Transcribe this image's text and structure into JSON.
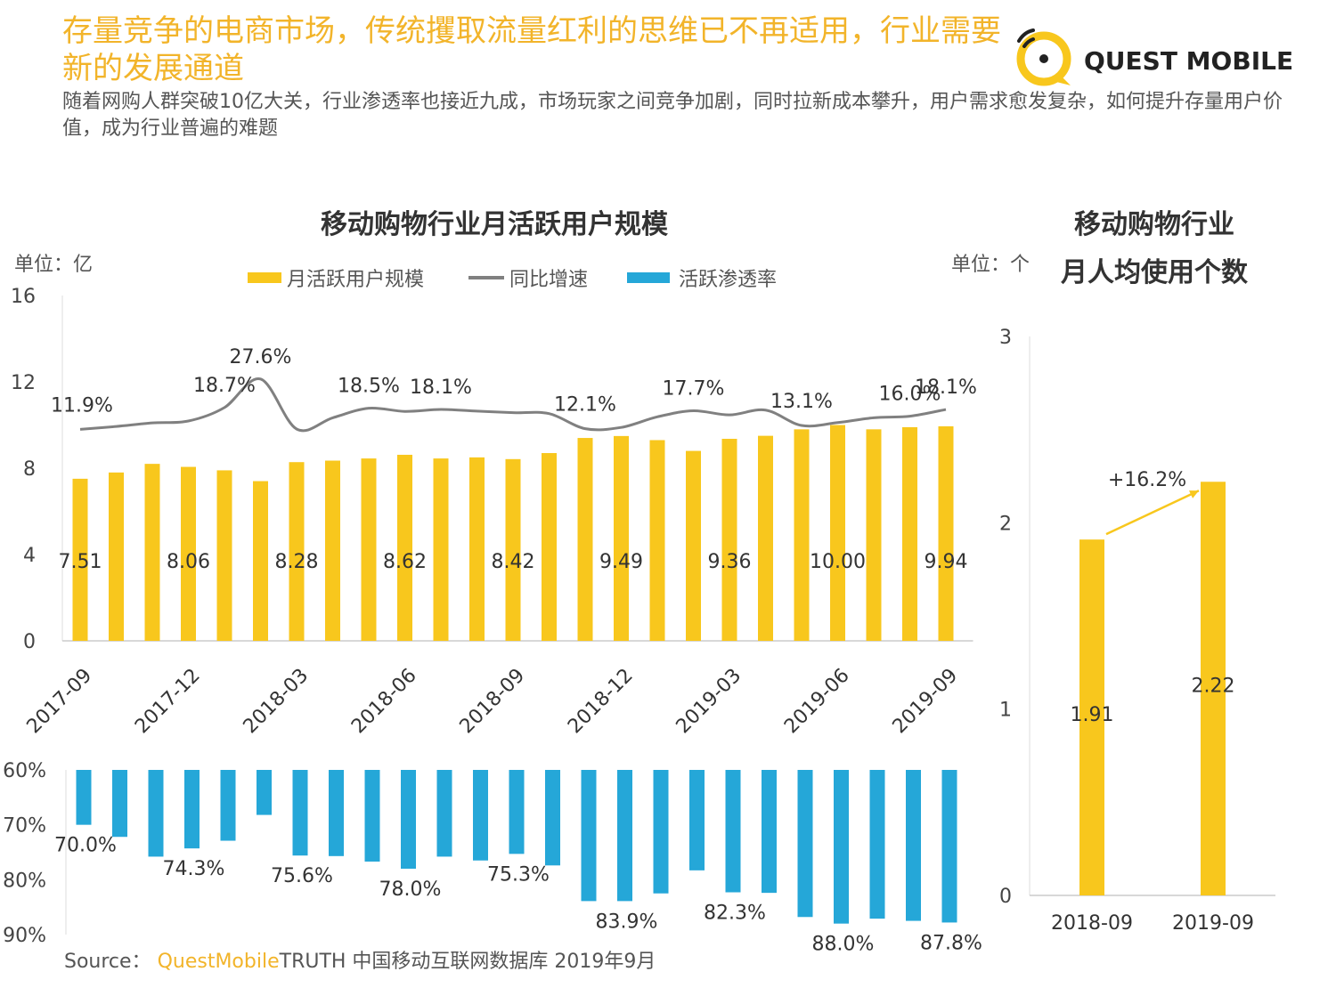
{
  "header": {
    "title": "存量竞争的电商市场，传统攫取流量红利的思维已不再适用，行业需要新的发展通道",
    "subtitle": "随着网购人群突破10亿大关，行业渗透率也接近九成，市场玩家之间竞争加剧，同时拉新成本攀升，用户需求愈发复杂，如何提升存量用户价值，成为行业普遍的难题",
    "logo_text": "QUEST MOBILE"
  },
  "source": {
    "label": "Source：",
    "brand": "QuestMobile",
    "text": "TRUTH 中国移动互联网数据库 2019年9月"
  },
  "colors": {
    "yellow": "#f8c71d",
    "gray": "#808080",
    "blue": "#25a7d8",
    "title_orange": "#f2b42a"
  },
  "chart_data": [
    {
      "type": "bar",
      "title": "移动购物行业月活跃用户规模",
      "unit_label": "单位：亿",
      "legend": [
        "月活跃用户规模",
        "同比增速",
        "活跃渗透率"
      ],
      "legend_position": "top",
      "x_tick_labels": [
        "2017-09",
        "2017-12",
        "2018-03",
        "2018-06",
        "2018-09",
        "2018-12",
        "2019-03",
        "2019-06",
        "2019-09"
      ],
      "y_ticks": [
        "0",
        "4",
        "8",
        "12",
        "16"
      ],
      "ylim": [
        0,
        16
      ],
      "series": [
        {
          "name": "月活跃用户规模",
          "type": "bar",
          "values": [
            7.51,
            7.8,
            8.2,
            8.06,
            7.9,
            7.4,
            8.28,
            8.35,
            8.45,
            8.62,
            8.45,
            8.5,
            8.42,
            8.7,
            9.4,
            9.49,
            9.3,
            8.8,
            9.36,
            9.5,
            9.8,
            10.0,
            9.8,
            9.9,
            9.94
          ],
          "labels": [
            "7.51",
            "",
            "",
            "8.06",
            "",
            "",
            "8.28",
            "",
            "",
            "8.62",
            "",
            "",
            "8.42",
            "",
            "",
            "9.49",
            "",
            "",
            "9.36",
            "",
            "",
            "10.00",
            "",
            "",
            "9.94"
          ]
        },
        {
          "name": "同比增速",
          "type": "line",
          "values": [
            11.9,
            12.8,
            13.9,
            14.5,
            18.7,
            27.6,
            12.0,
            15.5,
            18.5,
            17.5,
            18.1,
            17.6,
            17.1,
            16.8,
            12.1,
            12.5,
            15.8,
            17.7,
            16.4,
            17.9,
            13.1,
            14.0,
            15.5,
            16.0,
            18.1
          ],
          "labels": [
            "11.9%",
            "",
            "",
            "",
            "18.7%",
            "27.6%",
            "",
            "",
            "18.5%",
            "",
            "18.1%",
            "",
            "",
            "",
            "12.1%",
            "",
            "",
            "17.7%",
            "",
            "",
            "13.1%",
            "",
            "",
            "16.0%",
            "18.1%"
          ]
        },
        {
          "name": "活跃渗透率",
          "type": "bar",
          "values": [
            70.0,
            72.2,
            75.8,
            74.3,
            72.9,
            68.2,
            75.6,
            75.7,
            76.7,
            78.0,
            75.8,
            76.5,
            75.3,
            77.4,
            83.9,
            83.9,
            82.5,
            78.3,
            82.3,
            82.4,
            86.8,
            88.0,
            87.1,
            87.5,
            87.8
          ],
          "labels": [
            "70.0%",
            "",
            "",
            "74.3%",
            "",
            "",
            "75.6%",
            "",
            "",
            "78.0%",
            "",
            "",
            "75.3%",
            "",
            "",
            "83.9%",
            "",
            "",
            "82.3%",
            "",
            "",
            "88.0%",
            "",
            "",
            "87.8%"
          ]
        }
      ],
      "penetration_axis": {
        "ticks": [
          "60%",
          "70%",
          "80%",
          "90%"
        ],
        "range": [
          60,
          90
        ],
        "inverted": true
      }
    },
    {
      "type": "bar",
      "title_line1": "移动购物行业",
      "title_line2": "月人均使用个数",
      "unit_label": "单位：个",
      "categories": [
        "2018-09",
        "2019-09"
      ],
      "values": [
        1.91,
        2.22
      ],
      "labels": [
        "1.91",
        "2.22"
      ],
      "y_ticks": [
        "0",
        "1",
        "2",
        "3"
      ],
      "ylim": [
        0,
        3
      ],
      "annotation": "+16.2%"
    }
  ]
}
